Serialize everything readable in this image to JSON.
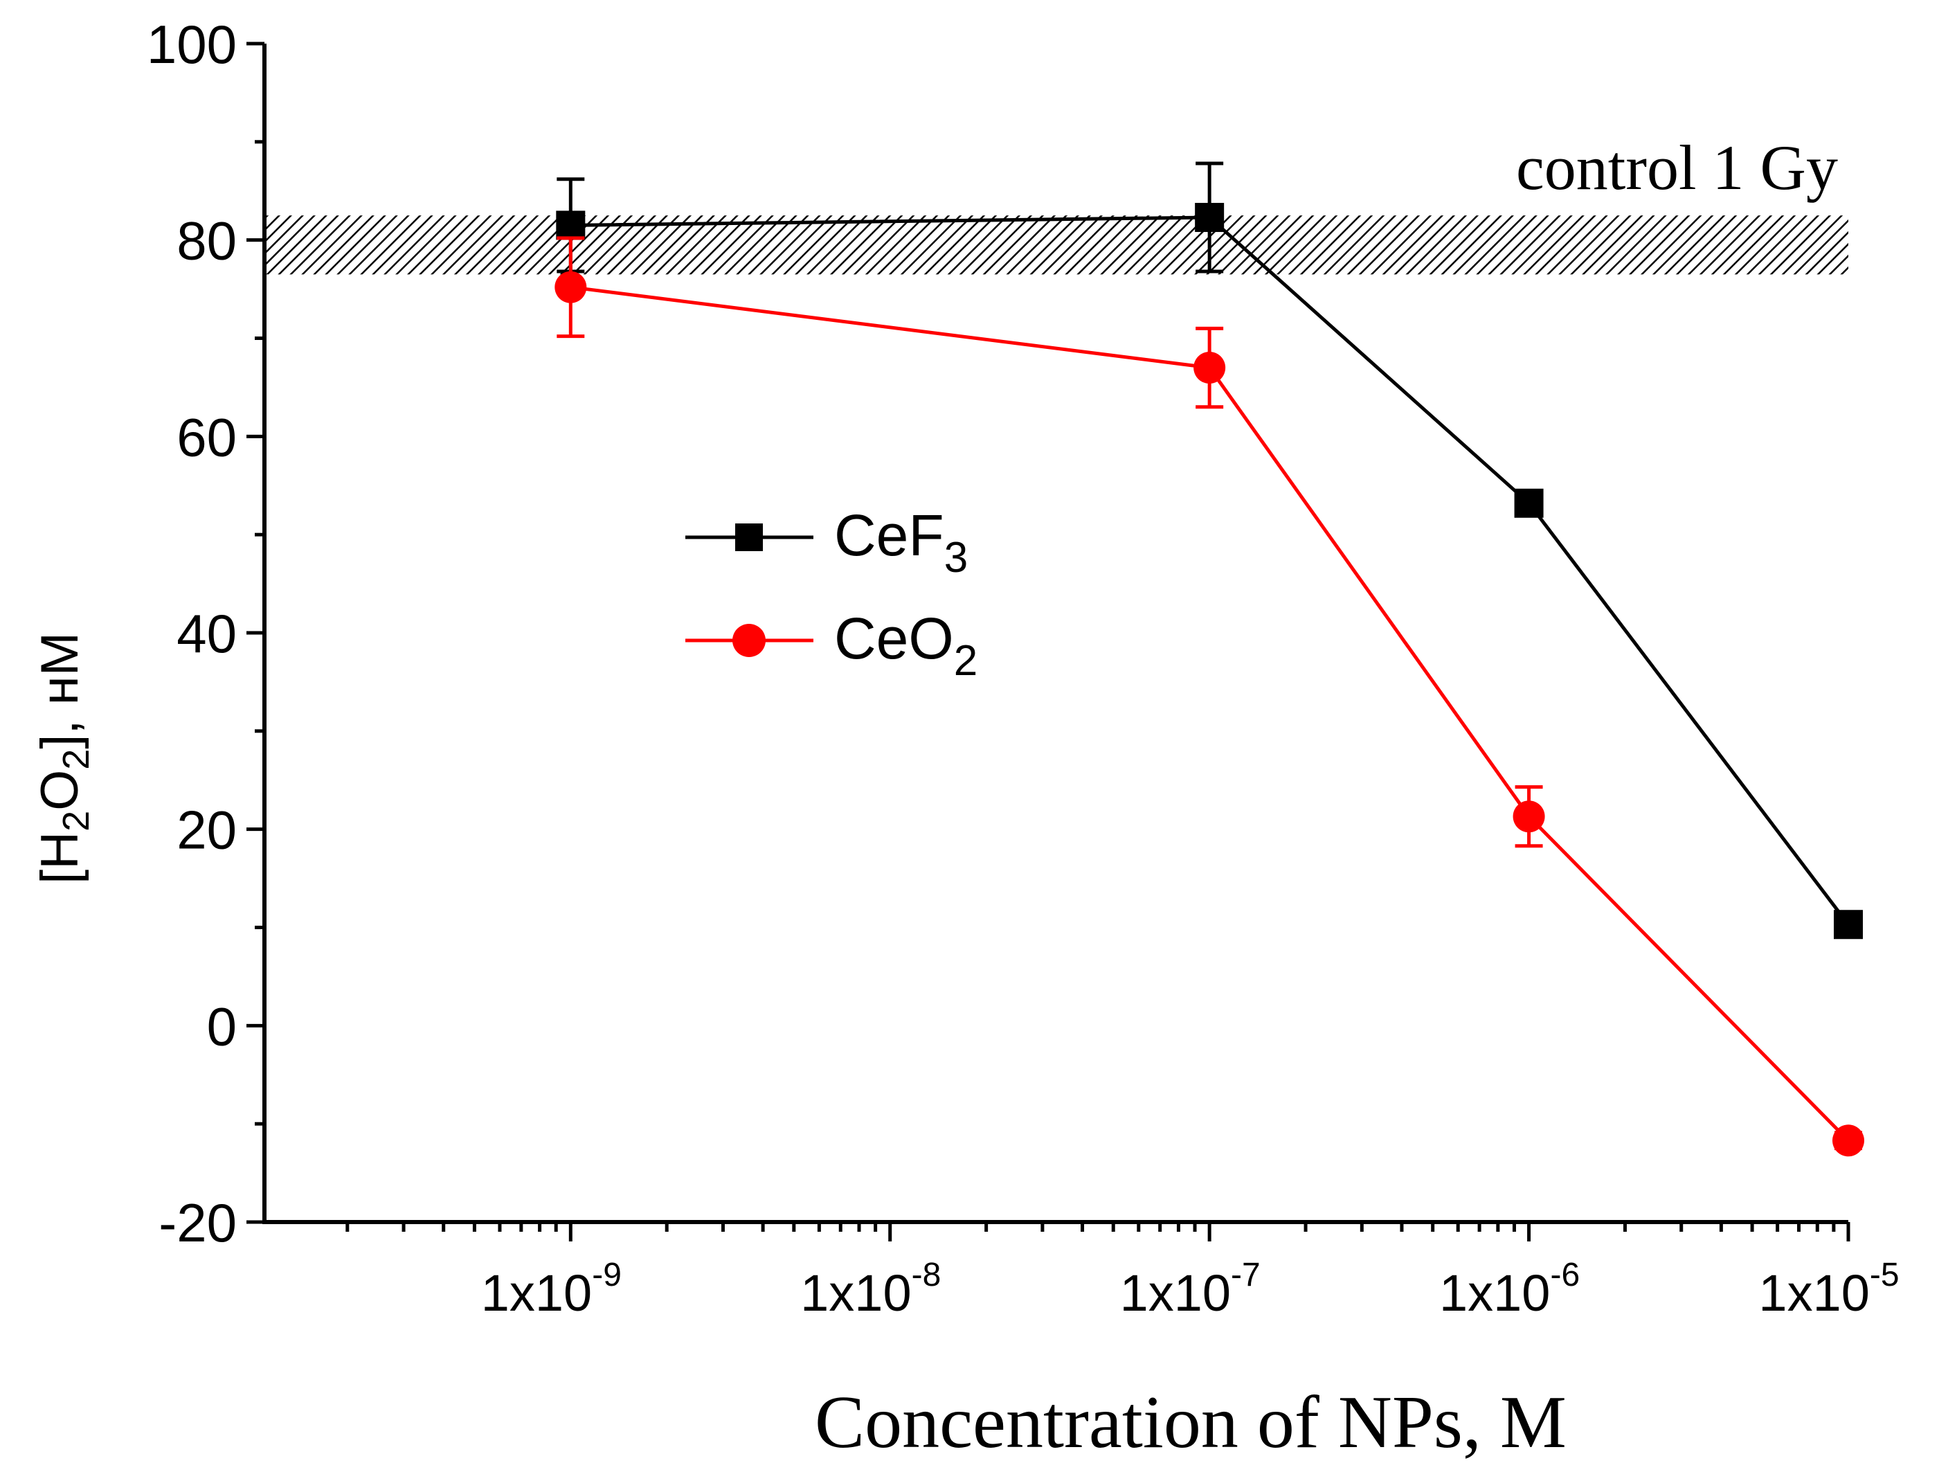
{
  "chart_data": {
    "type": "line",
    "title": "",
    "xlabel": "Concentration of NPs, M",
    "ylabel": {
      "prefix": "[H",
      "sub1": "2",
      "middle": "O",
      "sub2": "2",
      "suffix": "], нМ"
    },
    "xscale": "log",
    "x_ticks": [
      {
        "value": 1e-09,
        "base": "1x10",
        "exp": "-9"
      },
      {
        "value": 1e-08,
        "base": "1x10",
        "exp": "-8"
      },
      {
        "value": 1e-07,
        "base": "1x10",
        "exp": "-7"
      },
      {
        "value": 1e-06,
        "base": "1x10",
        "exp": "-6"
      },
      {
        "value": 1e-05,
        "base": "1x10",
        "exp": "-5"
      }
    ],
    "xlim": [
      1.1e-10,
      1e-05
    ],
    "ylim": [
      -20,
      100
    ],
    "y_ticks": [
      {
        "value": -20,
        "label": "-20"
      },
      {
        "value": 0,
        "label": "0"
      },
      {
        "value": 20,
        "label": "20"
      },
      {
        "value": 40,
        "label": "40"
      },
      {
        "value": 60,
        "label": "60"
      },
      {
        "value": 80,
        "label": "80"
      },
      {
        "value": 100,
        "label": "100"
      }
    ],
    "control_band": {
      "label": "control 1 Gy",
      "ymin": 76.5,
      "ymax": 82.5
    },
    "series": [
      {
        "name": "CeF3",
        "label_main": "CeF",
        "label_sub": "3",
        "color": "#000000",
        "marker": "square",
        "x": [
          1e-09,
          1e-07,
          1e-06,
          1e-05
        ],
        "y": [
          81.5,
          82.3,
          53.2,
          10.3
        ],
        "yerr": [
          4.7,
          5.5,
          1.0,
          0.8
        ]
      },
      {
        "name": "CeO2",
        "label_main": "CeO",
        "label_sub": "2",
        "color": "#ff0000",
        "marker": "circle",
        "x": [
          1e-09,
          1e-07,
          1e-06,
          1e-05
        ],
        "y": [
          75.2,
          67.0,
          21.3,
          -11.7
        ],
        "yerr": [
          5.0,
          4.0,
          3.0,
          0.8
        ]
      }
    ],
    "legend": {
      "placement": "center-left"
    }
  }
}
